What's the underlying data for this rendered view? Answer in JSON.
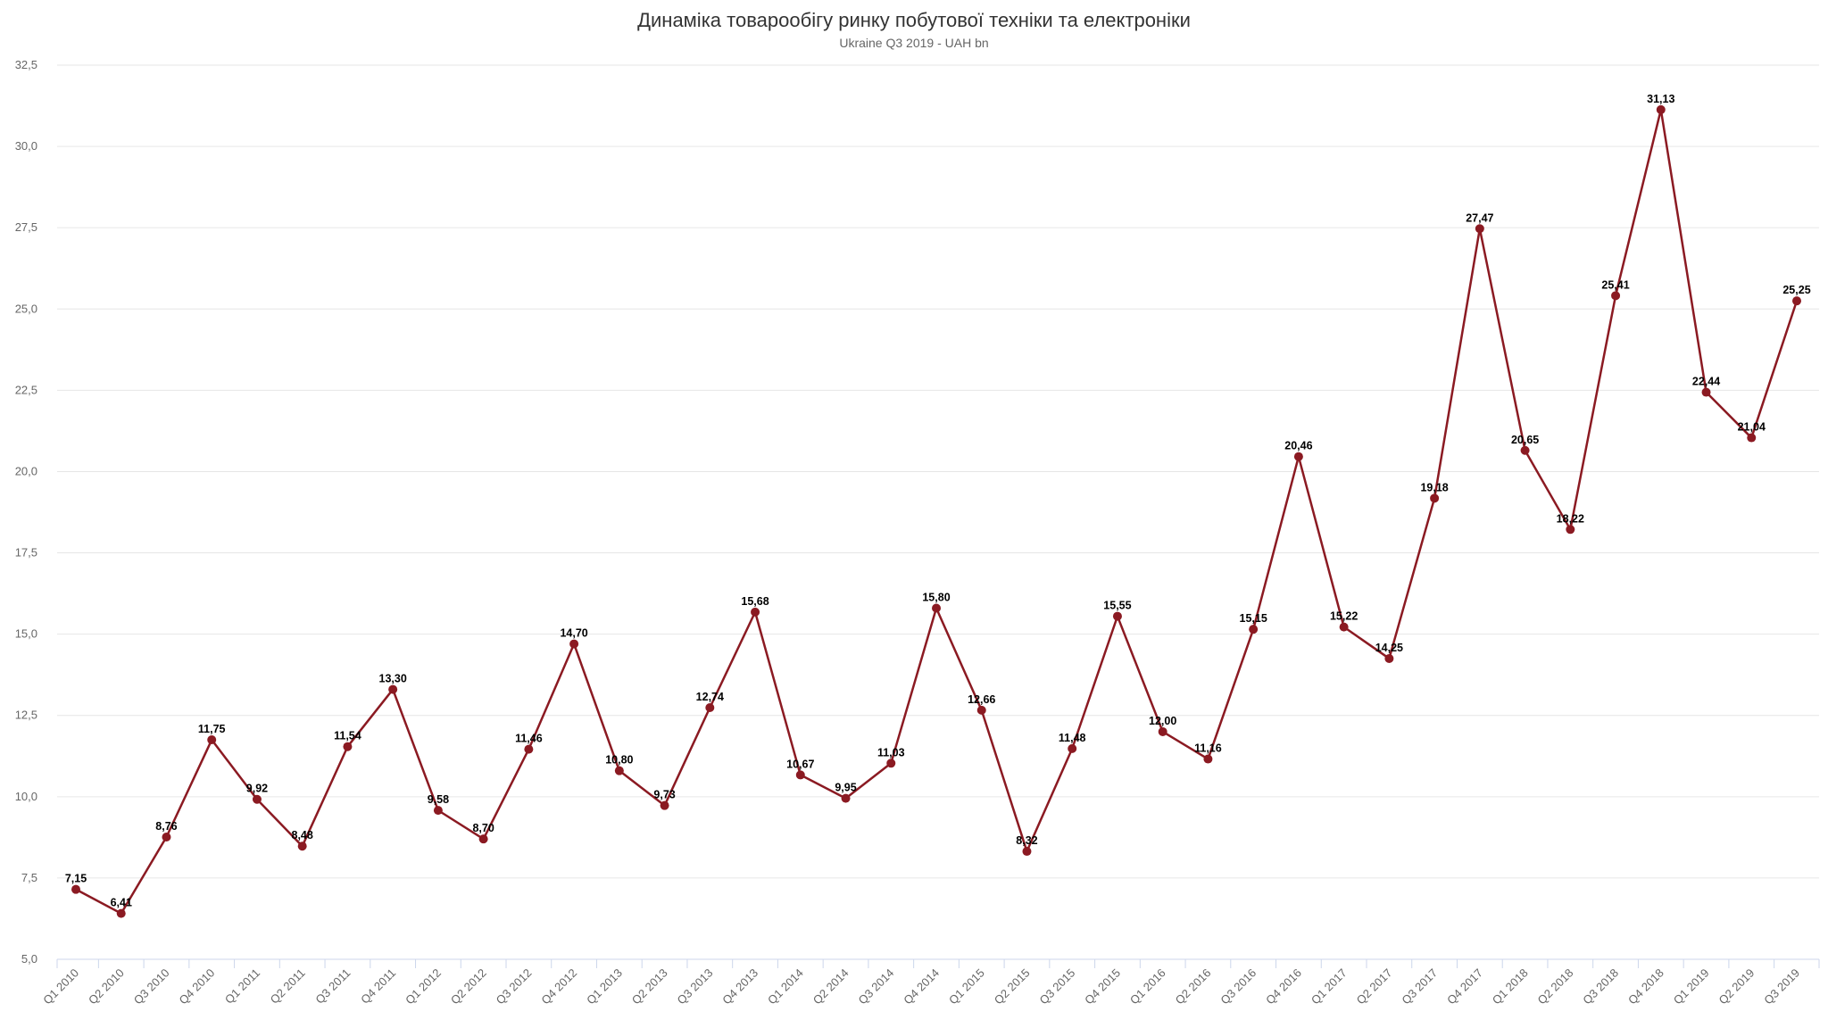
{
  "header": {
    "title": "Динаміка товарообігу ринку побутової техніки та електроніки",
    "subtitle": "Ukraine Q3 2019 - UAH bn"
  },
  "colors": {
    "series": "#8b1a22",
    "grid": "#e6e6e6",
    "axis": "#ccd6eb",
    "tick_text": "#666666",
    "label_text": "#000000"
  },
  "chart_data": {
    "type": "line",
    "title": "Динаміка товарообігу ринку побутової техніки та електроніки",
    "subtitle": "Ukraine Q3 2019 - UAH bn",
    "xlabel": "",
    "ylabel": "",
    "ylim": [
      5.0,
      32.5
    ],
    "yticks": [
      "5,0",
      "7,5",
      "10,0",
      "12,5",
      "15,0",
      "17,5",
      "20,0",
      "22,5",
      "25,0",
      "27,5",
      "30,0",
      "32,5"
    ],
    "grid": true,
    "legend": "none",
    "categories": [
      "Q1 2010",
      "Q2 2010",
      "Q3 2010",
      "Q4 2010",
      "Q1 2011",
      "Q2 2011",
      "Q3 2011",
      "Q4 2011",
      "Q1 2012",
      "Q2 2012",
      "Q3 2012",
      "Q4 2012",
      "Q1 2013",
      "Q2 2013",
      "Q3 2013",
      "Q4 2013",
      "Q1 2014",
      "Q2 2014",
      "Q3 2014",
      "Q4 2014",
      "Q1 2015",
      "Q2 2015",
      "Q3 2015",
      "Q4 2015",
      "Q1 2016",
      "Q2 2016",
      "Q3 2016",
      "Q4 2016",
      "Q1 2017",
      "Q2 2017",
      "Q3 2017",
      "Q4 2017",
      "Q1 2018",
      "Q2 2018",
      "Q3 2018",
      "Q4 2018",
      "Q1 2019",
      "Q2 2019",
      "Q3 2019"
    ],
    "values": [
      7.15,
      6.41,
      8.76,
      11.75,
      9.92,
      8.48,
      11.54,
      13.3,
      9.58,
      8.7,
      11.46,
      14.7,
      10.8,
      9.73,
      12.74,
      15.68,
      10.67,
      9.95,
      11.03,
      15.8,
      12.66,
      8.32,
      11.48,
      15.55,
      12.0,
      11.16,
      15.15,
      20.46,
      15.22,
      14.25,
      19.18,
      27.47,
      20.65,
      18.22,
      25.41,
      31.13,
      22.44,
      21.04,
      25.25
    ],
    "data_labels": [
      "7,15",
      "6,41",
      "8,76",
      "11,75",
      "9,92",
      "8,48",
      "11,54",
      "13,30",
      "9,58",
      "8,70",
      "11,46",
      "14,70",
      "10,80",
      "9,73",
      "12,74",
      "15,68",
      "10,67",
      "9,95",
      "11,03",
      "15,80",
      "12,66",
      "8,32",
      "11,48",
      "15,55",
      "12,00",
      "11,16",
      "15,15",
      "20,46",
      "15,22",
      "14,25",
      "19,18",
      "27,47",
      "20,65",
      "18,22",
      "25,41",
      "31,13",
      "22,44",
      "21,04",
      "25,25"
    ]
  }
}
